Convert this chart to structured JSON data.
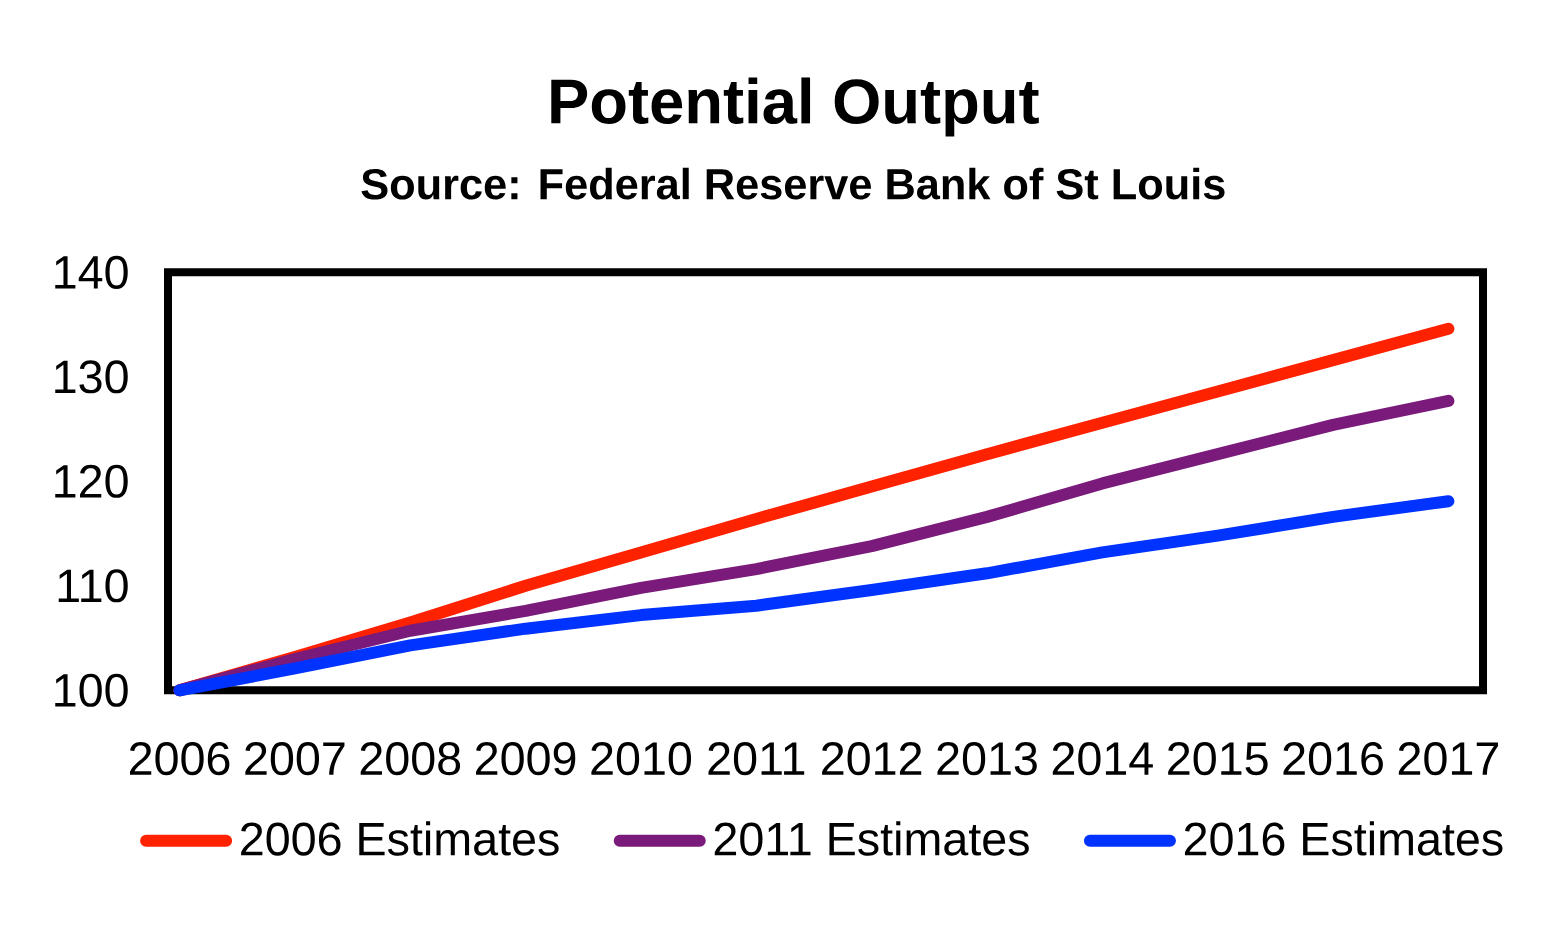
{
  "chart_data": {
    "type": "line",
    "title": "Potential Output",
    "subtitle": "Source: Federal Reserve Bank of St Louis",
    "categories": [
      "2006",
      "2007",
      "2008",
      "2009",
      "2010",
      "2011",
      "2012",
      "2013",
      "2014",
      "2015",
      "2016",
      "2017"
    ],
    "series": [
      {
        "name": "2006 Estimates",
        "color": "#ff2200",
        "values": [
          100,
          103.2,
          106.5,
          110,
          113.2,
          116.4,
          119.5,
          122.6,
          125.6,
          128.6,
          131.6,
          134.6
        ]
      },
      {
        "name": "2011 Estimates",
        "color": "#7a1a7a",
        "values": [
          100,
          103,
          105.7,
          107.6,
          109.8,
          111.6,
          113.8,
          116.6,
          119.8,
          122.6,
          125.4,
          127.7
        ]
      },
      {
        "name": "2016 Estimates",
        "color": "#0033ff",
        "values": [
          100,
          102.1,
          104.3,
          105.9,
          107.2,
          108.1,
          109.6,
          111.2,
          113.2,
          114.8,
          116.6,
          118.1
        ]
      }
    ],
    "ylim": [
      100,
      140
    ],
    "yticks": [
      100,
      110,
      120,
      130,
      140
    ],
    "grid": false,
    "legend": "bottom",
    "marker": "none",
    "line_style": "solid"
  }
}
